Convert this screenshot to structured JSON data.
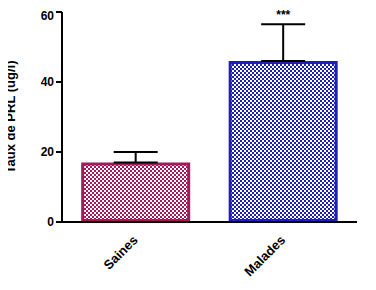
{
  "chart_data": {
    "type": "bar",
    "categories": [
      "Saines",
      "Malades"
    ],
    "values": [
      17,
      46
    ],
    "error_bars": [
      3,
      10.5
    ],
    "colors": [
      "#a3195b",
      "#1f1fb4"
    ],
    "y_label": "Taux de PRL (ug/l)",
    "ylim": [
      0,
      60
    ],
    "yticks": [
      0,
      20,
      40,
      60
    ],
    "grid": false,
    "annotations": [
      {
        "category": "Malades",
        "text": "***"
      }
    ]
  }
}
